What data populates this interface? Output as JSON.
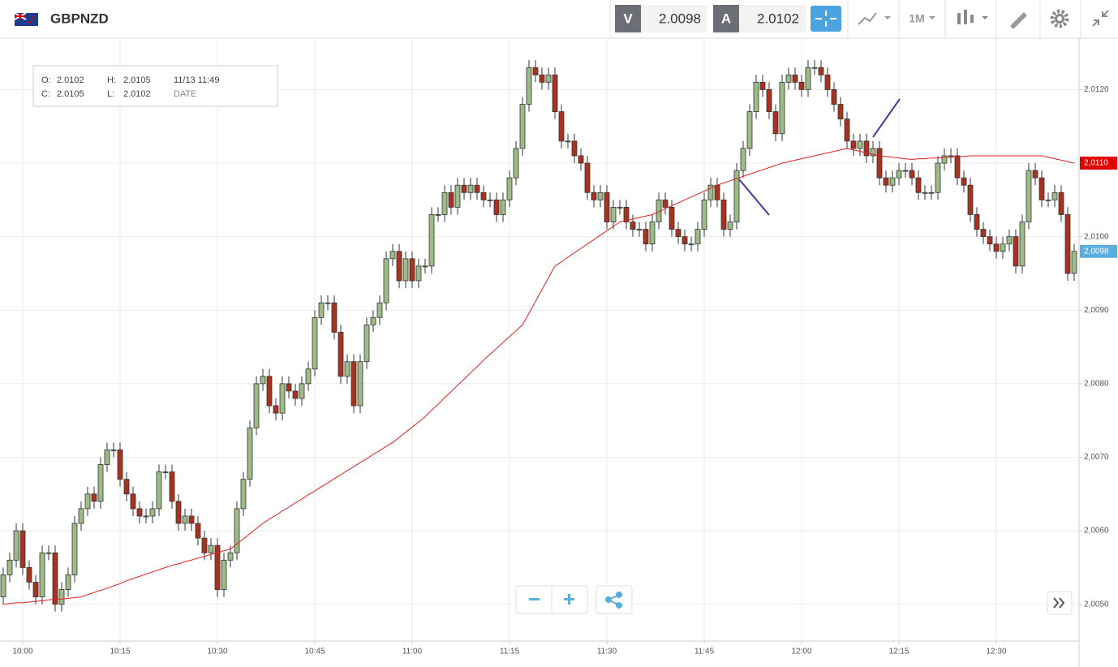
{
  "header": {
    "symbol": "GBPNZD",
    "sell_label": "V",
    "sell": 2.0098,
    "buy_label": "A",
    "buy": 2.0102,
    "timeframe": "1M"
  },
  "info_box": {
    "o_label": "O:",
    "o": 2.0102,
    "h_label": "H:",
    "h": 2.0105,
    "c_label": "C:",
    "c": 2.0105,
    "l_label": "L:",
    "l": 2.0102,
    "time": "11/13 11:49",
    "date_label": "DATE"
  },
  "chart_data": {
    "type": "candlestick",
    "up_color": "#9dbb86",
    "down_color": "#a8321f",
    "ma_color": "#e02020",
    "grid": true,
    "categories": [
      null,
      null,
      null,
      "10:00",
      null,
      null,
      null,
      null,
      null,
      null,
      null,
      null,
      null,
      null,
      null,
      null,
      null,
      null,
      "10:15",
      null,
      null,
      null,
      null,
      null,
      null,
      null,
      null,
      null,
      null,
      null,
      null,
      null,
      null,
      "10:30",
      null,
      null,
      null,
      null,
      null,
      null,
      null,
      null,
      null,
      null,
      null,
      null,
      null,
      null,
      "10:45",
      null,
      null,
      null,
      null,
      null,
      null,
      null,
      null,
      null,
      null,
      null,
      null,
      null,
      null,
      "11:00",
      null,
      null,
      null,
      null,
      null,
      null,
      null,
      null,
      null,
      null,
      null,
      null,
      null,
      null,
      "11:15",
      null,
      null,
      null,
      null,
      null,
      null,
      null,
      null,
      null,
      null,
      null,
      null,
      null,
      null,
      "11:30",
      null,
      null,
      null,
      null,
      null,
      null,
      null,
      null,
      null,
      null,
      null,
      null,
      null,
      null,
      "11:45",
      null,
      null,
      null,
      null,
      null,
      null,
      null,
      null,
      null,
      null,
      null,
      null,
      null,
      null,
      "12:00",
      null,
      null,
      null,
      null,
      null,
      null,
      null,
      null,
      null,
      null,
      null,
      null,
      null,
      null,
      "12:15",
      null,
      null,
      null,
      null,
      null,
      null,
      null,
      null,
      null,
      null,
      null,
      null,
      null,
      null,
      "12:30",
      null,
      null,
      null,
      null,
      null,
      null,
      null,
      null,
      null,
      null,
      null,
      null
    ],
    "open": [
      2.0051,
      2.0054,
      2.0056,
      2.006,
      2.0055,
      2.0053,
      2.0051,
      2.0057,
      2.0057,
      2.005,
      2.0052,
      2.0054,
      2.0061,
      2.0063,
      2.0065,
      2.0064,
      2.0069,
      2.0071,
      2.0071,
      2.0067,
      2.0065,
      2.0063,
      2.0062,
      2.0062,
      2.0063,
      2.0068,
      2.0068,
      2.0064,
      2.0061,
      2.0062,
      2.0061,
      2.0059,
      2.0057,
      2.0058,
      2.0052,
      2.0056,
      2.0057,
      2.0063,
      2.0067,
      2.0074,
      2.008,
      2.0081,
      2.0077,
      2.0076,
      2.008,
      2.0079,
      2.0078,
      2.008,
      2.0082,
      2.0089,
      2.0091,
      2.0091,
      2.0087,
      2.0081,
      2.0083,
      2.0077,
      2.0083,
      2.0088,
      2.0089,
      2.0091,
      2.0097,
      2.0098,
      2.0094,
      2.0097,
      2.0094,
      2.0096,
      2.0096,
      2.0103,
      2.0103,
      2.0106,
      2.0104,
      2.0107,
      2.0106,
      2.0107,
      2.0106,
      2.0105,
      2.0105,
      2.0103,
      2.0105,
      2.0108,
      2.0112,
      2.0118,
      2.0123,
      2.0122,
      2.0121,
      2.0122,
      2.0117,
      2.0113,
      2.0113,
      2.0111,
      2.011,
      2.0106,
      2.0105,
      2.0106,
      2.0102,
      2.0104,
      2.0104,
      2.0102,
      2.0101,
      2.0101,
      2.0099,
      2.0102,
      2.0105,
      2.0104,
      2.0101,
      2.01,
      2.0099,
      2.0099,
      2.0101,
      2.0105,
      2.0107,
      2.0105,
      2.0101,
      2.0102,
      2.0109,
      2.0112,
      2.0117,
      2.0121,
      2.012,
      2.0117,
      2.0114,
      2.0121,
      2.0122,
      2.0121,
      2.012,
      2.0123,
      2.0123,
      2.0122,
      2.012,
      2.0118,
      2.0116,
      2.0113,
      2.0112,
      2.0113,
      2.0111,
      2.0112,
      2.0108,
      2.0107,
      2.0108,
      2.0109,
      2.0109,
      2.0108,
      2.0106,
      2.0106,
      2.0106,
      2.011,
      2.0111,
      2.0111,
      2.0108,
      2.0107,
      2.0103,
      2.0101,
      2.01,
      2.0099,
      2.0098,
      2.0099,
      2.01,
      2.0096,
      2.0102,
      2.0109,
      2.0108,
      2.0105,
      2.0105,
      2.0106,
      2.0103,
      2.0095
    ],
    "high": [
      2.0055,
      2.0057,
      2.0061,
      2.0061,
      2.0056,
      2.0054,
      2.0058,
      2.0058,
      2.0058,
      2.0053,
      2.0055,
      2.0062,
      2.0064,
      2.0066,
      2.0066,
      2.007,
      2.0072,
      2.0072,
      2.0072,
      2.0068,
      2.0066,
      2.0064,
      2.0063,
      2.0064,
      2.0069,
      2.0069,
      2.0069,
      2.0065,
      2.0063,
      2.0063,
      2.0062,
      2.006,
      2.0059,
      2.0059,
      2.0057,
      2.0058,
      2.0064,
      2.0068,
      2.0075,
      2.0081,
      2.0082,
      2.0082,
      2.0078,
      2.0081,
      2.0081,
      2.008,
      2.0081,
      2.0083,
      2.009,
      2.0092,
      2.0092,
      2.0092,
      2.0088,
      2.0084,
      2.0084,
      2.0084,
      2.0089,
      2.009,
      2.0092,
      2.0098,
      2.0099,
      2.0099,
      2.0098,
      2.0098,
      2.0097,
      2.0097,
      2.0104,
      2.0104,
      2.0107,
      2.0107,
      2.0108,
      2.0108,
      2.0108,
      2.0108,
      2.0107,
      2.0106,
      2.0106,
      2.0106,
      2.0109,
      2.0113,
      2.0119,
      2.0124,
      2.0124,
      2.0123,
      2.0123,
      2.0123,
      2.0118,
      2.0114,
      2.0114,
      2.0112,
      2.0111,
      2.0107,
      2.0107,
      2.0107,
      2.0105,
      2.0105,
      2.0105,
      2.0103,
      2.0102,
      2.0102,
      2.0103,
      2.0106,
      2.0106,
      2.0105,
      2.0102,
      2.0101,
      2.01,
      2.0102,
      2.0106,
      2.0108,
      2.0108,
      2.0106,
      2.0103,
      2.011,
      2.0113,
      2.0118,
      2.0122,
      2.0122,
      2.0121,
      2.0118,
      2.0122,
      2.0123,
      2.0123,
      2.0122,
      2.0124,
      2.0124,
      2.0124,
      2.0123,
      2.0121,
      2.0119,
      2.0117,
      2.0114,
      2.0114,
      2.0114,
      2.0113,
      2.0113,
      2.0109,
      2.0109,
      2.011,
      2.011,
      2.011,
      2.0109,
      2.0107,
      2.0107,
      2.0111,
      2.0112,
      2.0112,
      2.0112,
      2.0109,
      2.0108,
      2.0104,
      2.0102,
      2.0101,
      2.01,
      2.01,
      2.0101,
      2.0101,
      2.0103,
      2.011,
      2.011,
      2.0109,
      2.0106,
      2.0107,
      2.0107,
      2.0104,
      2.0099
    ],
    "low": [
      2.005,
      2.0053,
      2.0055,
      2.0054,
      2.0052,
      2.005,
      2.005,
      2.0056,
      2.0049,
      2.0049,
      2.0051,
      2.0053,
      2.006,
      2.0062,
      2.0063,
      2.0063,
      2.0068,
      2.007,
      2.0066,
      2.0064,
      2.0062,
      2.0061,
      2.0061,
      2.0061,
      2.0062,
      2.0067,
      2.0063,
      2.006,
      2.006,
      2.006,
      2.0058,
      2.0056,
      2.0056,
      2.0051,
      2.0051,
      2.0055,
      2.0056,
      2.0062,
      2.0066,
      2.0073,
      2.0079,
      2.0076,
      2.0075,
      2.0075,
      2.0078,
      2.0077,
      2.0077,
      2.0079,
      2.0081,
      2.0088,
      2.009,
      2.0086,
      2.008,
      2.008,
      2.0076,
      2.0076,
      2.0082,
      2.0087,
      2.0088,
      2.009,
      2.0096,
      2.0093,
      2.0093,
      2.0093,
      2.0093,
      2.0095,
      2.0095,
      2.0102,
      2.0102,
      2.0103,
      2.0103,
      2.0105,
      2.0105,
      2.0105,
      2.0104,
      2.0104,
      2.0102,
      2.0102,
      2.0104,
      2.0107,
      2.0111,
      2.0117,
      2.0121,
      2.012,
      2.012,
      2.0116,
      2.0112,
      2.0112,
      2.011,
      2.0109,
      2.0105,
      2.0104,
      2.0104,
      2.0101,
      2.0101,
      2.0103,
      2.0101,
      2.01,
      2.01,
      2.0098,
      2.0098,
      2.0101,
      2.0103,
      2.01,
      2.0099,
      2.0098,
      2.0098,
      2.0098,
      2.01,
      2.0104,
      2.0104,
      2.01,
      2.01,
      2.0101,
      2.0108,
      2.0111,
      2.0116,
      2.0119,
      2.0116,
      2.0113,
      2.0113,
      2.012,
      2.012,
      2.0119,
      2.0119,
      2.0122,
      2.0121,
      2.0119,
      2.0117,
      2.0115,
      2.0112,
      2.0111,
      2.0111,
      2.011,
      2.011,
      2.0107,
      2.0106,
      2.0106,
      2.0107,
      2.0108,
      2.0107,
      2.0105,
      2.0105,
      2.0105,
      2.0105,
      2.0109,
      2.011,
      2.0107,
      2.0106,
      2.0102,
      2.01,
      2.0099,
      2.0098,
      2.0097,
      2.0097,
      2.0098,
      2.0095,
      2.0095,
      2.0101,
      2.0107,
      2.0104,
      2.0104,
      2.0104,
      2.0102,
      2.0094,
      2.0094
    ],
    "close": [
      2.0054,
      2.0056,
      2.006,
      2.0055,
      2.0053,
      2.0051,
      2.0057,
      2.0057,
      2.005,
      2.0052,
      2.0054,
      2.0061,
      2.0063,
      2.0065,
      2.0064,
      2.0069,
      2.0071,
      2.0071,
      2.0067,
      2.0065,
      2.0063,
      2.0062,
      2.0062,
      2.0063,
      2.0068,
      2.0068,
      2.0064,
      2.0061,
      2.0062,
      2.0061,
      2.0059,
      2.0057,
      2.0058,
      2.0052,
      2.0056,
      2.0057,
      2.0063,
      2.0067,
      2.0074,
      2.008,
      2.0081,
      2.0077,
      2.0076,
      2.008,
      2.0079,
      2.0078,
      2.008,
      2.0082,
      2.0089,
      2.0091,
      2.0091,
      2.0087,
      2.0081,
      2.0083,
      2.0077,
      2.0083,
      2.0088,
      2.0089,
      2.0091,
      2.0097,
      2.0098,
      2.0094,
      2.0097,
      2.0094,
      2.0096,
      2.0096,
      2.0103,
      2.0103,
      2.0106,
      2.0104,
      2.0107,
      2.0106,
      2.0107,
      2.0106,
      2.0105,
      2.0105,
      2.0103,
      2.0105,
      2.0108,
      2.0112,
      2.0118,
      2.0123,
      2.0122,
      2.0121,
      2.0122,
      2.0117,
      2.0113,
      2.0113,
      2.0111,
      2.011,
      2.0106,
      2.0105,
      2.0106,
      2.0102,
      2.0104,
      2.0104,
      2.0102,
      2.0101,
      2.0101,
      2.0099,
      2.0102,
      2.0105,
      2.0104,
      2.0101,
      2.01,
      2.0099,
      2.0099,
      2.0101,
      2.0105,
      2.0107,
      2.0105,
      2.0101,
      2.0102,
      2.0109,
      2.0112,
      2.0117,
      2.0121,
      2.012,
      2.0117,
      2.0114,
      2.0121,
      2.0122,
      2.0121,
      2.012,
      2.0123,
      2.0123,
      2.0122,
      2.012,
      2.0118,
      2.0116,
      2.0113,
      2.0112,
      2.0113,
      2.0111,
      2.0112,
      2.0108,
      2.0107,
      2.0108,
      2.0109,
      2.0109,
      2.0108,
      2.0106,
      2.0106,
      2.0106,
      2.011,
      2.0111,
      2.0111,
      2.0108,
      2.0107,
      2.0103,
      2.0101,
      2.01,
      2.0099,
      2.0098,
      2.0099,
      2.01,
      2.0096,
      2.0102,
      2.0109,
      2.0108,
      2.0105,
      2.0105,
      2.0106,
      2.0103,
      2.0095,
      2.0098
    ],
    "ma": [
      2.005,
      2.00501,
      2.00502,
      2.00502,
      2.00503,
      2.00504,
      2.00505,
      2.00506,
      2.00507,
      2.00507,
      2.00508,
      2.00509,
      2.0051,
      2.00513,
      2.00516,
      2.00519,
      2.00522,
      2.00525,
      2.00528,
      2.00532,
      2.00535,
      2.00538,
      2.00541,
      2.00544,
      2.00547,
      2.0055,
      2.00553,
      2.00555,
      2.00558,
      2.0056,
      2.00563,
      2.00565,
      2.00568,
      2.0057,
      2.00573,
      2.00575,
      2.00582,
      2.00589,
      2.00596,
      2.00603,
      2.0061,
      2.00616,
      2.00621,
      2.00627,
      2.00632,
      2.00638,
      2.00643,
      2.00649,
      2.00654,
      2.0066,
      2.00665,
      2.00671,
      2.00676,
      2.00682,
      2.00687,
      2.00693,
      2.00698,
      2.00704,
      2.00709,
      2.00715,
      2.0072,
      2.00727,
      2.00734,
      2.00741,
      2.00748,
      2.00755,
      2.00764,
      2.00772,
      2.00781,
      2.00789,
      2.00798,
      2.00806,
      2.00815,
      2.00823,
      2.00832,
      2.0084,
      2.00848,
      2.00856,
      2.00864,
      2.00872,
      2.0088,
      2.00896,
      2.00912,
      2.00928,
      2.00944,
      2.0096,
      2.00966,
      2.00972,
      2.00978,
      2.00984,
      2.0099,
      2.00996,
      2.01002,
      2.01008,
      2.01014,
      2.0102,
      2.01022,
      2.01024,
      2.01026,
      2.01028,
      2.0103,
      2.01034,
      2.01038,
      2.01042,
      2.01046,
      2.0105,
      2.01054,
      2.01058,
      2.01062,
      2.01066,
      2.0107,
      2.01073,
      2.01076,
      2.01079,
      2.01082,
      2.01085,
      2.01088,
      2.01091,
      2.01094,
      2.01097,
      2.011,
      2.01102,
      2.01104,
      2.01106,
      2.01108,
      2.0111,
      2.01112,
      2.01114,
      2.01116,
      2.01118,
      2.0112,
      2.01118,
      2.01116,
      2.01114,
      2.01112,
      2.0111,
      2.01109,
      2.01108,
      2.01107,
      2.01106,
      2.01105,
      2.01106,
      2.01106,
      2.01107,
      2.01107,
      2.01108,
      2.01108,
      2.01109,
      2.01109,
      2.0111,
      2.0111,
      2.0111,
      2.0111,
      2.0111,
      2.0111,
      2.0111,
      2.0111,
      2.0111,
      2.0111,
      2.0111,
      2.0111,
      2.01108,
      2.01106,
      2.01104,
      2.01102,
      2.011
    ],
    "ylim": [
      2.0045,
      2.0127
    ],
    "yticks": [
      {
        "value": 2.005,
        "label": "2,0050"
      },
      {
        "value": 2.006,
        "label": "2,0060"
      },
      {
        "value": 2.007,
        "label": "2,0070"
      },
      {
        "value": 2.008,
        "label": "2,0080"
      },
      {
        "value": 2.009,
        "label": "2,0090"
      },
      {
        "value": 2.01,
        "label": "2,0100"
      },
      {
        "value": 2.011,
        "label": "2,0110"
      },
      {
        "value": 2.012,
        "label": "2,0120"
      }
    ],
    "price_tags": [
      {
        "value": 2.011,
        "label": "2,0110",
        "color": "#e00000"
      },
      {
        "value": 2.0098,
        "label": "2,0098",
        "color": "#5aaee0"
      }
    ]
  }
}
